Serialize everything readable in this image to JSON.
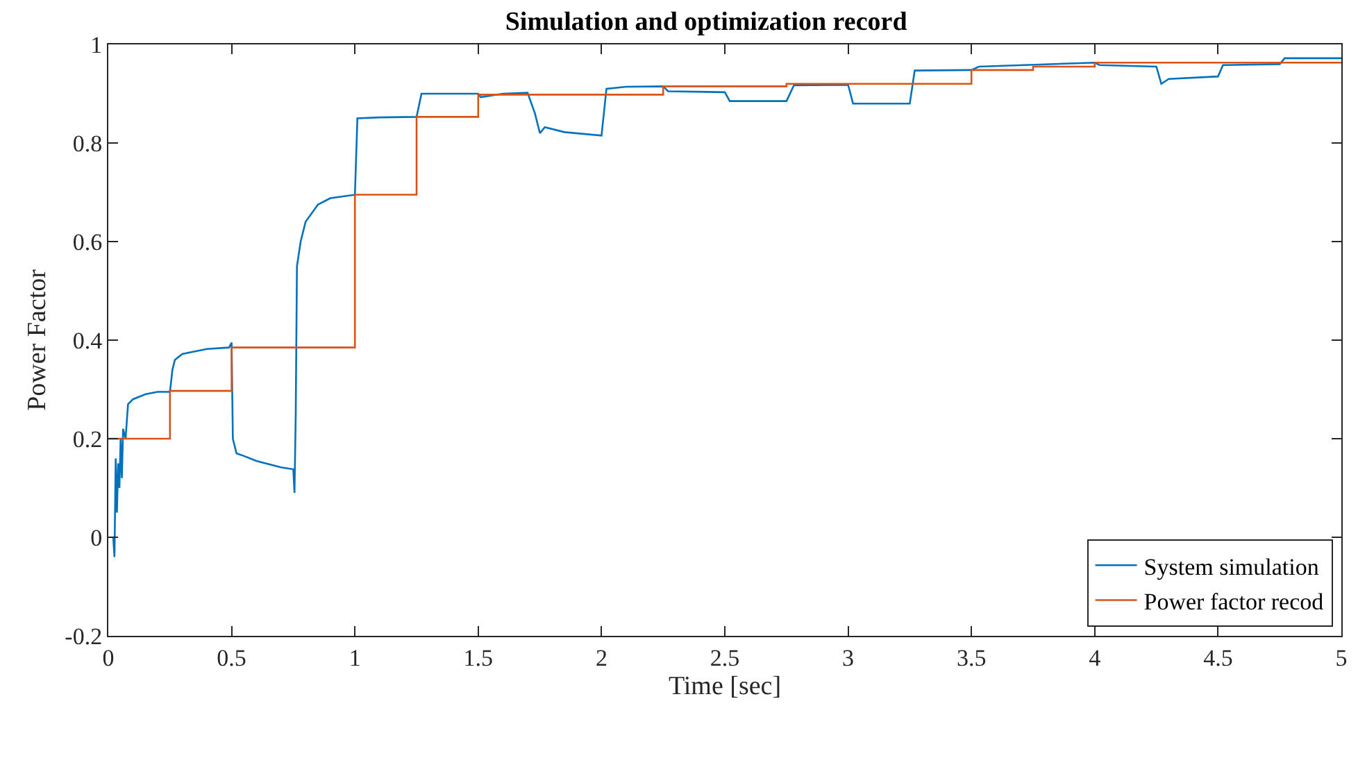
{
  "chart_data": {
    "type": "line",
    "title": "Simulation and optimization record",
    "xlabel": "Time [sec]",
    "ylabel": "Power Factor",
    "xlim": [
      0,
      5
    ],
    "xticks": [
      0,
      0.5,
      1,
      1.5,
      2,
      2.5,
      3,
      3.5,
      4,
      4.5,
      5
    ],
    "ylim": [
      -0.2,
      1
    ],
    "yticks": [
      -0.2,
      0,
      0.2,
      0.4,
      0.6,
      0.8,
      1
    ],
    "grid": false,
    "legend": "bottom right",
    "line_style": "solid",
    "marker": "none",
    "series": [
      {
        "name": "System simulation",
        "color": "#0072bd",
        "x": [
          0.02,
          0.025,
          0.03,
          0.035,
          0.04,
          0.045,
          0.05,
          0.055,
          0.06,
          0.07,
          0.08,
          0.1,
          0.15,
          0.2,
          0.25,
          0.26,
          0.27,
          0.3,
          0.4,
          0.49,
          0.5,
          0.505,
          0.52,
          0.55,
          0.6,
          0.7,
          0.75,
          0.755,
          0.76,
          0.765,
          0.78,
          0.8,
          0.85,
          0.9,
          1.0,
          1.01,
          1.1,
          1.25,
          1.27,
          1.5,
          1.51,
          1.6,
          1.7,
          1.73,
          1.75,
          1.77,
          1.85,
          2.0,
          2.02,
          2.1,
          2.25,
          2.27,
          2.5,
          2.52,
          2.75,
          2.78,
          3.0,
          3.02,
          3.25,
          3.27,
          3.5,
          3.53,
          4.0,
          4.02,
          4.25,
          4.27,
          4.3,
          4.5,
          4.52,
          4.75,
          4.77,
          5.0
        ],
        "values": [
          0.0,
          -0.04,
          0.16,
          0.05,
          0.15,
          0.1,
          0.2,
          0.12,
          0.22,
          0.2,
          0.27,
          0.28,
          0.29,
          0.295,
          0.295,
          0.34,
          0.36,
          0.372,
          0.382,
          0.385,
          0.395,
          0.2,
          0.17,
          0.165,
          0.155,
          0.142,
          0.138,
          0.09,
          0.25,
          0.55,
          0.6,
          0.64,
          0.675,
          0.688,
          0.695,
          0.85,
          0.852,
          0.853,
          0.9,
          0.9,
          0.893,
          0.9,
          0.902,
          0.86,
          0.82,
          0.832,
          0.822,
          0.815,
          0.91,
          0.914,
          0.915,
          0.905,
          0.903,
          0.885,
          0.885,
          0.917,
          0.918,
          0.88,
          0.88,
          0.947,
          0.948,
          0.955,
          0.963,
          0.958,
          0.955,
          0.92,
          0.93,
          0.935,
          0.958,
          0.96,
          0.972,
          0.972
        ]
      },
      {
        "name": "Power factor recod",
        "color": "#d95319",
        "type": "step",
        "x": [
          0,
          0.25,
          0.5,
          1.0,
          1.25,
          1.5,
          2.25,
          2.75,
          3.5,
          3.75,
          4.0,
          5.0
        ],
        "values": [
          0.2,
          0.297,
          0.385,
          0.695,
          0.853,
          0.898,
          0.915,
          0.92,
          0.948,
          0.955,
          0.963,
          0.963
        ]
      }
    ]
  }
}
